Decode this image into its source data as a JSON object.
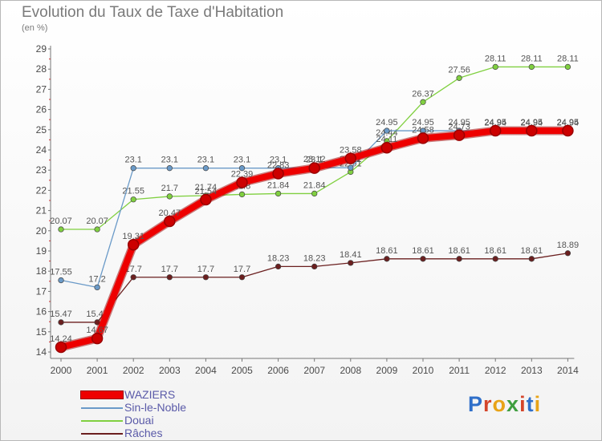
{
  "title": "Evolution du Taux de Taxe d'Habitation",
  "unit_label": "(en %)",
  "logo": {
    "text": "Proxiti",
    "letter_colors": [
      "#2f6fc9",
      "#d4452a",
      "#e8a317",
      "#3f9e3f",
      "#d4452a",
      "#2f6fc9",
      "#e8a317"
    ]
  },
  "chart_data": {
    "type": "line",
    "x": [
      "2000",
      "2001",
      "2002",
      "2003",
      "2004",
      "2005",
      "2006",
      "2007",
      "2008",
      "2009",
      "2010",
      "2011",
      "2012",
      "2013",
      "2014"
    ],
    "y_ticks": [
      "14",
      "15",
      "16",
      "17",
      "18",
      "19",
      "20",
      "21",
      "22",
      "23",
      "24",
      "25",
      "26",
      "27",
      "28",
      "29"
    ],
    "ylim": [
      14,
      29
    ],
    "grid": false,
    "legend_position": "bottom-left",
    "series": [
      {
        "name": "Râches",
        "color": "#6b1f1f",
        "values": [
          15.47,
          15.47,
          17.7,
          17.7,
          17.7,
          17.7,
          18.23,
          18.23,
          18.41,
          18.61,
          18.61,
          18.61,
          18.61,
          18.61,
          18.89
        ],
        "labels": [
          "15.47",
          "15.47",
          "17.7",
          "17.7",
          "17.7",
          "17.7",
          "18.23",
          "18.23",
          "18.41",
          "18.61",
          "18.61",
          "18.61",
          "18.61",
          "18.61",
          "18.89"
        ]
      },
      {
        "name": "Douai",
        "color": "#80d040",
        "values": [
          20.07,
          20.07,
          21.55,
          21.7,
          21.74,
          21.8,
          21.84,
          21.84,
          22.91,
          24.44,
          26.37,
          27.56,
          28.11,
          28.11,
          28.11
        ],
        "labels": [
          "20.07",
          "20.07",
          "21.55",
          "21.7",
          "21.74",
          "21.8",
          "21.84",
          "21.84",
          "22.91",
          "24.44",
          "26.37",
          "27.56",
          "28.11",
          "28.11",
          "28.11"
        ]
      },
      {
        "name": "Sin-le-Noble",
        "color": "#6a9ac8",
        "values": [
          17.55,
          17.2,
          23.1,
          23.1,
          23.1,
          23.1,
          23.1,
          23.12,
          23.12,
          24.95,
          24.95,
          24.95,
          24.94,
          24.94,
          24.94
        ],
        "labels": [
          "17.55",
          "17.2",
          "23.1",
          "23.1",
          "23.1",
          "23.1",
          "23.1",
          "23.12",
          "23.12",
          "24.95",
          "24.95",
          "24.95",
          "24.94",
          "24.94",
          "24.94"
        ]
      },
      {
        "name": "WAZIERS",
        "color": "#ee0000",
        "values": [
          14.24,
          14.67,
          19.31,
          20.47,
          21.54,
          22.39,
          22.83,
          23.1,
          23.58,
          24.11,
          24.58,
          24.73,
          24.95,
          24.95,
          24.95
        ],
        "labels": [
          "14.24",
          "14.67",
          "19.31",
          "20.47",
          "21.54",
          "22.39",
          "22.83",
          "23.1",
          "23.58",
          "24.11",
          "24.58",
          "24.73",
          "24.95",
          "24.95",
          "24.95"
        ]
      }
    ]
  },
  "legend": {
    "items": [
      {
        "label": "WAZIERS",
        "color": "#ee0000",
        "thickness": "heavy"
      },
      {
        "label": "Sin-le-Noble",
        "color": "#6a9ac8",
        "thickness": "thin"
      },
      {
        "label": "Douai",
        "color": "#80d040",
        "thickness": "thin"
      },
      {
        "label": "Râches",
        "color": "#6b1f1f",
        "thickness": "thin"
      }
    ]
  }
}
